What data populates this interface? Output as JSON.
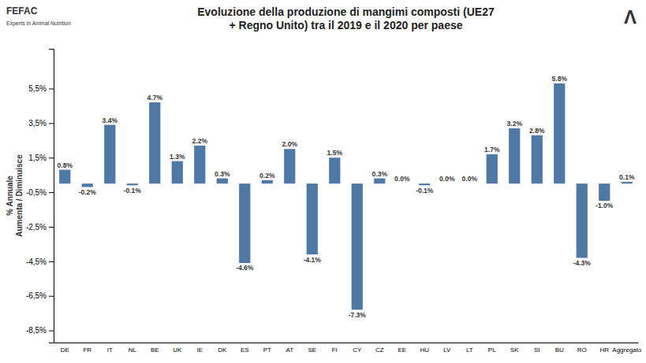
{
  "chart_data": {
    "type": "bar",
    "title": "Evoluzione della produzione di mangimi composti (UE27\n+ Regno Unito) tra il 2019 e il 2020 per paese",
    "y_label": "% Annuale\nAumenta / Diminuisce",
    "categories": [
      "DE",
      "FR",
      "IT",
      "NL",
      "BE",
      "UK",
      "IE",
      "DK",
      "ES",
      "PT",
      "AT",
      "SE",
      "FI",
      "CY",
      "CZ",
      "EE",
      "HU",
      "LV",
      "LT",
      "PL",
      "SK",
      "SI",
      "BU",
      "RO",
      "HR",
      "Aggregato"
    ],
    "values": [
      0.8,
      -0.2,
      3.4,
      -0.1,
      4.7,
      1.3,
      2.2,
      0.3,
      -4.6,
      0.2,
      2.0,
      -4.1,
      1.5,
      -7.3,
      0.3,
      0.0,
      -0.1,
      0.0,
      0.0,
      1.7,
      3.2,
      2.8,
      5.8,
      -4.3,
      -1.0,
      0.1
    ],
    "value_labels": [
      "0.8%",
      "-0.2%",
      "3.4%",
      "-0.1%",
      "4.7%",
      "1.3%",
      "2.2%",
      "0.3%",
      "-4.6%",
      "0.2%",
      "2.0%",
      "-4.1%",
      "1.5%",
      "-7.3%",
      "0.3%",
      "0.0%",
      "-0.1%",
      "0.0%",
      "0.0%",
      "1.7%",
      "3.2%",
      "2.8%",
      "5.8%",
      "-4.3%",
      "-1.0%",
      "0.1%"
    ],
    "data_labels": true,
    "ylim": [
      -9.2,
      7.8
    ],
    "yticks": [
      {
        "value": -8.5,
        "label": "-8,5%"
      },
      {
        "value": -6.5,
        "label": "-6,5%"
      },
      {
        "value": -4.5,
        "label": "-4,5%"
      },
      {
        "value": -2.5,
        "label": "-2,5%"
      },
      {
        "value": -0.5,
        "label": "-0,5%"
      },
      {
        "value": 1.5,
        "label": "1,5%"
      },
      {
        "value": 3.5,
        "label": "3,5%"
      },
      {
        "value": 5.5,
        "label": "5,5%"
      }
    ],
    "grid": false,
    "annotations": [
      "FEFAC",
      "Experts in Animal Nutrition",
      "Λ"
    ]
  }
}
